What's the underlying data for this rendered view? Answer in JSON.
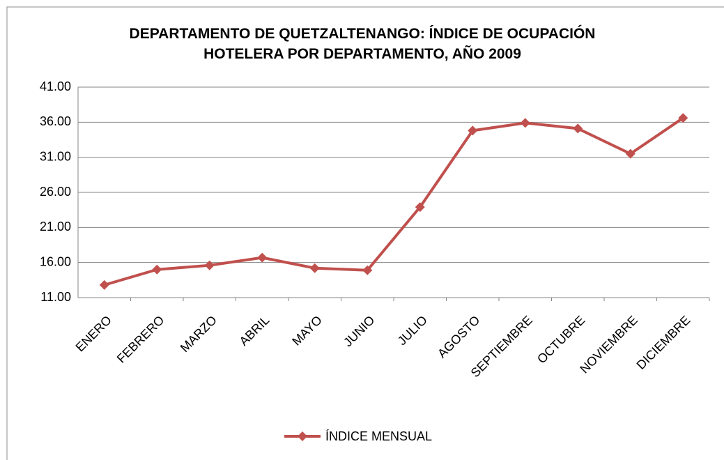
{
  "chart_data": {
    "type": "line",
    "title": "DEPARTAMENTO DE QUETZALTENANGO: ÍNDICE DE OCUPACIÓN HOTELERA POR DEPARTAMENTO,  AÑO 2009",
    "categories": [
      "ENERO",
      "FEBRERO",
      "MARZO",
      "ABRIL",
      "MAYO",
      "JUNIO",
      "JULIO",
      "AGOSTO",
      "SEPTIEMBRE",
      "OCTUBRE",
      "NOVIEMBRE",
      "DICIEMBRE"
    ],
    "series": [
      {
        "name": "ÍNDICE MENSUAL",
        "color": "#c0504d",
        "values": [
          12.8,
          15.0,
          15.6,
          16.7,
          15.2,
          14.9,
          23.9,
          34.8,
          35.9,
          35.1,
          31.5,
          36.6
        ]
      }
    ],
    "ylim": [
      11,
      41
    ],
    "yticks": [
      {
        "value": 11,
        "label": "11.00"
      },
      {
        "value": 16,
        "label": "16.00"
      },
      {
        "value": 21,
        "label": "21.00"
      },
      {
        "value": 26,
        "label": "26.00"
      },
      {
        "value": 31,
        "label": "31.00"
      },
      {
        "value": 36,
        "label": "36.00"
      },
      {
        "value": 41,
        "label": "41.00"
      }
    ],
    "grid": true,
    "legend": "bottom"
  }
}
